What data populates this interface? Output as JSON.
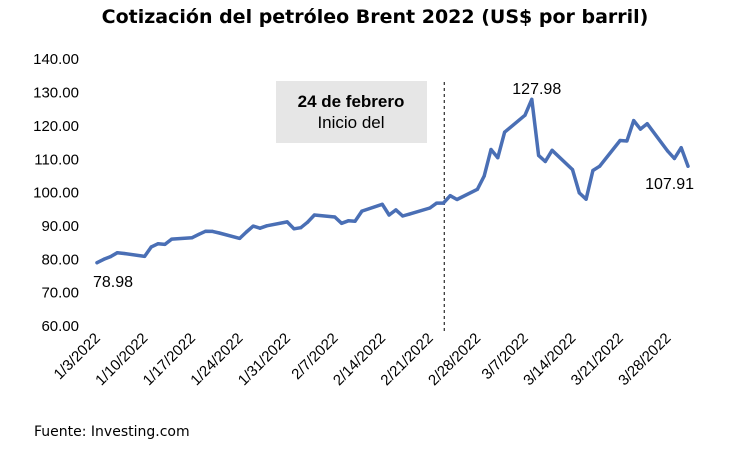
{
  "chart_data": {
    "type": "line",
    "title": "Cotización del petróleo Brent 2022 (US$ por barril)",
    "source": "Fuente: Investing.com",
    "xlabel": "",
    "ylabel": "",
    "ylim": [
      60,
      140
    ],
    "grid": false,
    "legend": "none",
    "colors": {
      "line": "#4a6fb5",
      "annotation_box": "#e6e6e6"
    },
    "yticks": [
      "60.00",
      "70.00",
      "80.00",
      "90.00",
      "100.00",
      "110.00",
      "120.00",
      "130.00",
      "140.00"
    ],
    "xticks": [
      "1/3/2022",
      "1/10/2022",
      "1/17/2022",
      "1/24/2022",
      "1/31/2022",
      "2/7/2022",
      "2/14/2022",
      "2/21/2022",
      "2/28/2022",
      "3/7/2022",
      "3/14/2022",
      "3/21/2022",
      "3/28/2022"
    ],
    "series": [
      {
        "x": [
          "2022-01-03",
          "2022-01-04",
          "2022-01-05",
          "2022-01-06",
          "2022-01-07",
          "2022-01-10",
          "2022-01-11",
          "2022-01-12",
          "2022-01-13",
          "2022-01-14",
          "2022-01-17",
          "2022-01-18",
          "2022-01-19",
          "2022-01-20",
          "2022-01-21",
          "2022-01-24",
          "2022-01-25",
          "2022-01-26",
          "2022-01-27",
          "2022-01-28",
          "2022-01-31",
          "2022-02-01",
          "2022-02-02",
          "2022-02-03",
          "2022-02-04",
          "2022-02-07",
          "2022-02-08",
          "2022-02-09",
          "2022-02-10",
          "2022-02-11",
          "2022-02-14",
          "2022-02-15",
          "2022-02-16",
          "2022-02-17",
          "2022-02-18",
          "2022-02-21",
          "2022-02-22",
          "2022-02-23",
          "2022-02-24",
          "2022-02-25",
          "2022-02-28",
          "2022-03-01",
          "2022-03-02",
          "2022-03-03",
          "2022-03-04",
          "2022-03-07",
          "2022-03-08",
          "2022-03-09",
          "2022-03-10",
          "2022-03-11",
          "2022-03-14",
          "2022-03-15",
          "2022-03-16",
          "2022-03-17",
          "2022-03-18",
          "2022-03-21",
          "2022-03-22",
          "2022-03-23",
          "2022-03-24",
          "2022-03-25",
          "2022-03-28",
          "2022-03-29",
          "2022-03-30",
          "2022-03-31"
        ],
        "values": [
          78.98,
          80.0,
          80.8,
          81.99,
          81.75,
          80.87,
          83.72,
          84.67,
          84.47,
          86.06,
          86.48,
          87.51,
          88.44,
          88.38,
          87.89,
          86.27,
          88.2,
          89.96,
          89.34,
          90.03,
          91.21,
          89.16,
          89.47,
          91.11,
          93.27,
          92.69,
          90.78,
          91.55,
          91.41,
          94.44,
          96.48,
          93.28,
          94.81,
          92.97,
          93.54,
          95.39,
          96.84,
          96.84,
          99.08,
          97.93,
          100.99,
          104.97,
          112.93,
          110.46,
          118.11,
          123.21,
          127.98,
          111.14,
          109.33,
          112.67,
          106.9,
          99.91,
          98.02,
          106.64,
          107.93,
          115.62,
          115.48,
          121.6,
          119.03,
          120.65,
          112.48,
          110.23,
          113.45,
          107.91
        ]
      }
    ],
    "annotations": {
      "start_value": "78.98",
      "peak_value": "127.98",
      "end_value": "107.91",
      "event_date": "24 de febrero",
      "event_text": "Inicio del"
    }
  }
}
